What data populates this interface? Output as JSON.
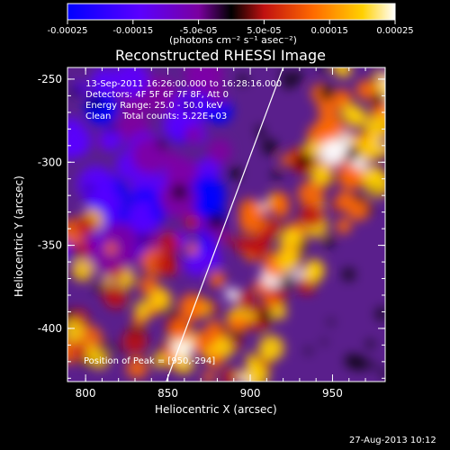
{
  "colorbar": {
    "ticks": [
      "-0.00025",
      "-0.00015",
      "-5.0e-05",
      "5.0e-05",
      "0.00015",
      "0.00025"
    ],
    "range": [
      -0.00025,
      0.00025
    ],
    "colors": [
      "#0000ff",
      "#5a00ff",
      "#7f00a0",
      "#000000",
      "#c01010",
      "#ff6a00",
      "#ffd000",
      "#ffffff"
    ]
  },
  "chart_data": {
    "type": "heatmap",
    "title": "Reconstructed RHESSI Image",
    "xlabel": "Heliocentric X (arcsec)",
    "ylabel": "Heliocentric Y (arcsec)",
    "colorbar_label": "(photons cm⁻² s⁻¹ asec⁻²)",
    "xlim": [
      789,
      982
    ],
    "ylim": [
      -432,
      -243
    ],
    "xticks": [
      800,
      850,
      900,
      950
    ],
    "yticks": [
      -250,
      -300,
      -350,
      -400
    ],
    "annotations": [
      "13-Sep-2011 16:26:00.000 to 16:28:16.000",
      "Detectors: 4F 5F 6F 7F 8F, Att 0",
      "Energy Range: 25.0 - 50.0 keV",
      "Clean    Total counts: 5.22E+03"
    ],
    "peak_label": "Position of Peak = [950,-294]",
    "peak": [
      950,
      -294
    ],
    "limb_line": [
      [
        849,
        -432
      ],
      [
        920,
        -243
      ]
    ]
  },
  "footer": {
    "timestamp": "27-Aug-2013 10:12"
  }
}
